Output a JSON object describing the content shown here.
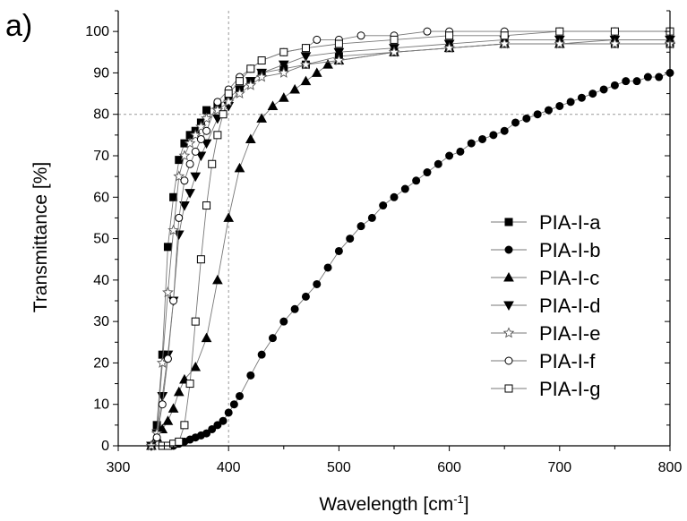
{
  "panel_label": "a)",
  "chart_data": {
    "type": "line",
    "title": "",
    "xlabel": "Wavelength [cm",
    "xlabel_sup": "-1",
    "xlabel_end": "]",
    "ylabel": "Transmittance [%]",
    "xlim": [
      300,
      800
    ],
    "ylim": [
      0,
      105
    ],
    "x_ticks": [
      300,
      400,
      500,
      600,
      700,
      800
    ],
    "y_ticks": [
      0,
      10,
      20,
      30,
      40,
      50,
      60,
      70,
      80,
      90,
      100
    ],
    "reference_lines": {
      "x": 400,
      "y": 80
    },
    "grid": false,
    "legend_position": "center-right",
    "series": [
      {
        "name": "PIA-I-a",
        "marker": "square-filled",
        "x": [
          330,
          335,
          340,
          345,
          350,
          355,
          360,
          365,
          370,
          375,
          380,
          390,
          400,
          410,
          420,
          430,
          450,
          470,
          500,
          550,
          600,
          650,
          700,
          750,
          800
        ],
        "y": [
          0,
          5,
          22,
          48,
          60,
          69,
          73,
          75,
          76,
          78,
          81,
          82,
          84,
          86,
          88,
          90,
          91,
          92,
          94,
          95,
          96,
          97,
          97,
          97,
          97
        ]
      },
      {
        "name": "PIA-I-b",
        "marker": "circle-filled",
        "x": [
          345,
          350,
          355,
          360,
          365,
          370,
          375,
          380,
          385,
          390,
          395,
          400,
          405,
          410,
          420,
          430,
          440,
          450,
          460,
          470,
          480,
          490,
          500,
          510,
          520,
          530,
          540,
          550,
          560,
          570,
          580,
          590,
          600,
          610,
          620,
          630,
          640,
          650,
          660,
          670,
          680,
          690,
          700,
          710,
          720,
          730,
          740,
          750,
          760,
          770,
          780,
          790,
          800
        ],
        "y": [
          0,
          0,
          0.5,
          1,
          1.5,
          2,
          2.5,
          3,
          4,
          5,
          6,
          8,
          10,
          12,
          17,
          22,
          26,
          30,
          33,
          36,
          39,
          43,
          47,
          50,
          53,
          55,
          58,
          60,
          62,
          64,
          66,
          68,
          70,
          71,
          73,
          74,
          75,
          76,
          78,
          79,
          80,
          81,
          82,
          83,
          84,
          85,
          86,
          87,
          88,
          88,
          89,
          89,
          90
        ]
      },
      {
        "name": "PIA-I-c",
        "marker": "triangle-up-filled",
        "x": [
          330,
          335,
          340,
          345,
          350,
          355,
          360,
          370,
          380,
          390,
          400,
          410,
          420,
          430,
          440,
          450,
          460,
          470,
          480,
          490,
          500,
          550,
          600,
          650,
          700,
          750,
          800
        ],
        "y": [
          0,
          2,
          4,
          6,
          9,
          13,
          16,
          19,
          26,
          40,
          55,
          67,
          74,
          79,
          82,
          84,
          86,
          88,
          90,
          92,
          93,
          95,
          96,
          97,
          97,
          98,
          98
        ]
      },
      {
        "name": "PIA-I-d",
        "marker": "triangle-down-filled",
        "x": [
          330,
          335,
          340,
          345,
          350,
          355,
          360,
          365,
          370,
          375,
          380,
          390,
          400,
          410,
          420,
          430,
          450,
          470,
          500,
          550,
          600,
          650,
          700,
          750,
          800
        ],
        "y": [
          0,
          3,
          12,
          22,
          35,
          51,
          58,
          61,
          65,
          70,
          73,
          79,
          82,
          86,
          88,
          90,
          92,
          94,
          95,
          96,
          97,
          98,
          98,
          98,
          98
        ]
      },
      {
        "name": "PIA-I-e",
        "marker": "star-open",
        "x": [
          330,
          335,
          340,
          345,
          350,
          355,
          360,
          365,
          370,
          375,
          380,
          390,
          400,
          410,
          420,
          430,
          450,
          470,
          500,
          550,
          600,
          650,
          700,
          750,
          800
        ],
        "y": [
          0,
          3,
          20,
          37,
          52,
          65,
          70,
          73,
          75,
          77,
          79,
          81,
          83,
          85,
          87,
          89,
          90,
          92,
          93,
          95,
          96,
          97,
          97,
          97,
          97
        ]
      },
      {
        "name": "PIA-I-f",
        "marker": "circle-open",
        "x": [
          335,
          340,
          345,
          350,
          355,
          360,
          365,
          370,
          375,
          380,
          390,
          400,
          410,
          420,
          430,
          450,
          470,
          480,
          500,
          520,
          550,
          580,
          600,
          650,
          700,
          750,
          800
        ],
        "y": [
          2,
          10,
          21,
          35,
          55,
          64,
          68,
          71,
          74,
          76,
          83,
          86,
          89,
          91,
          93,
          95,
          96,
          98,
          98,
          99,
          99,
          100,
          100,
          100,
          100,
          100,
          100
        ]
      },
      {
        "name": "PIA-I-g",
        "marker": "square-open",
        "x": [
          340,
          345,
          350,
          355,
          360,
          365,
          370,
          375,
          380,
          385,
          390,
          395,
          400,
          410,
          420,
          430,
          450,
          470,
          500,
          550,
          600,
          650,
          700,
          750,
          800
        ],
        "y": [
          0,
          0,
          0.5,
          1,
          5,
          15,
          30,
          45,
          58,
          68,
          75,
          80,
          85,
          88,
          91,
          93,
          95,
          96,
          97,
          98,
          99,
          99,
          100,
          100,
          100
        ]
      }
    ]
  }
}
